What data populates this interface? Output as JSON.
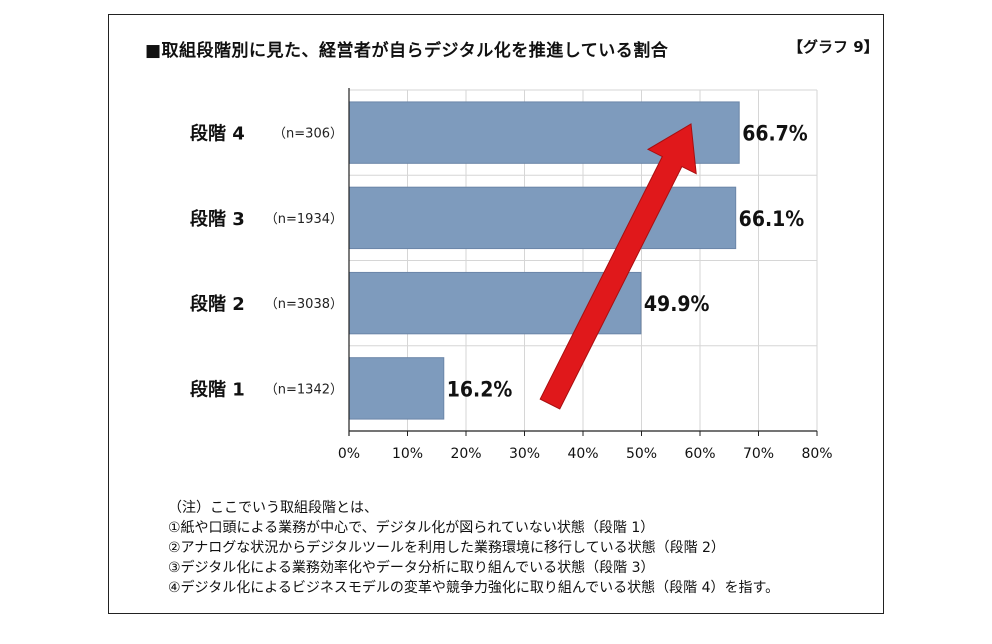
{
  "title": "■取組段階別に見た、経営者が自らデジタル化を推進している割合",
  "figure_label": "【グラフ 9】",
  "chart_data": {
    "type": "bar",
    "orientation": "horizontal",
    "categories": [
      "段階 4",
      "段階 3",
      "段階 2",
      "段階 1"
    ],
    "sample_sizes": [
      "（n=306）",
      "（n=1934）",
      "（n=3038）",
      "（n=1342）"
    ],
    "values": [
      66.7,
      66.1,
      49.9,
      16.2
    ],
    "value_labels": [
      "66.7%",
      "66.1%",
      "49.9%",
      "16.2%"
    ],
    "xlim": [
      0,
      80
    ],
    "xticks": [
      "0%",
      "10%",
      "20%",
      "30%",
      "40%",
      "50%",
      "60%",
      "70%",
      "80%"
    ],
    "grid": true,
    "bar_color": "#7e9bbd",
    "arrow_color": "#e0181b",
    "arrow": "red upward arrow from 段階 1 toward 段階 4"
  },
  "notes": [
    "（注）ここでいう取組段階とは、",
    "①紙や口頭による業務が中心で、デジタル化が図られていない状態（段階 1）",
    "②アナログな状況からデジタルツールを利用した業務環境に移行している状態（段階 2）",
    "③デジタル化による業務効率化やデータ分析に取り組んでいる状態（段階 3）",
    "④デジタル化によるビジネスモデルの変革や競争力強化に取り組んでいる状態（段階 4）を指す。"
  ]
}
